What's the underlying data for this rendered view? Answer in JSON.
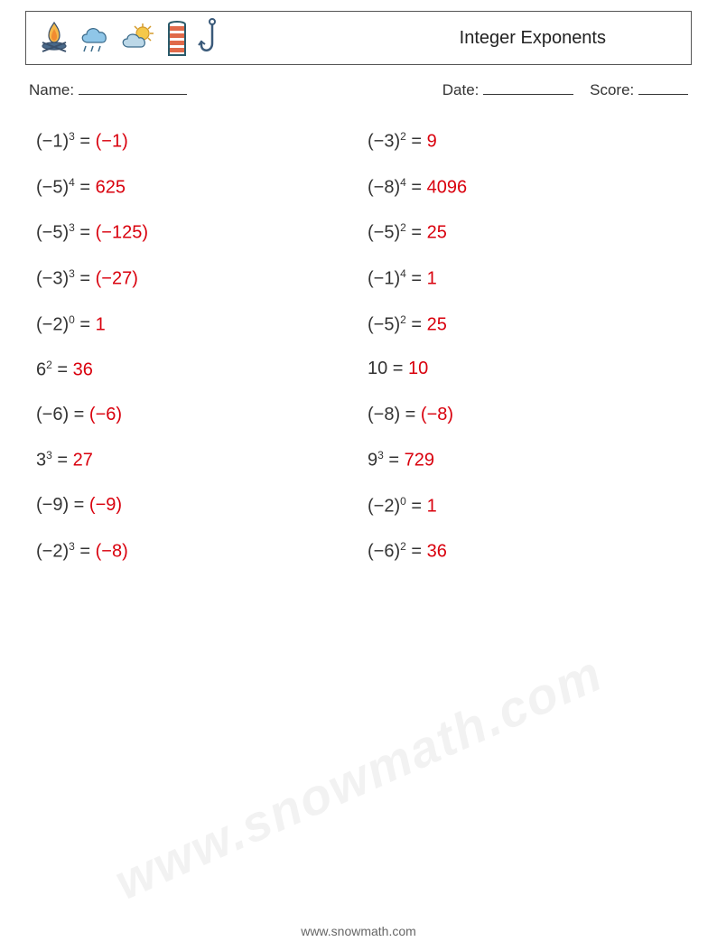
{
  "header": {
    "title": "Integer Exponents",
    "icons": [
      "campfire-icon",
      "cloud-icon",
      "sun-icon",
      "ladder-icon",
      "hook-icon"
    ]
  },
  "meta": {
    "name_label": "Name:",
    "date_label": "Date:",
    "score_label": "Score:"
  },
  "colors": {
    "answer": "#d9000d",
    "text": "#333333",
    "border": "#555555",
    "background": "#ffffff"
  },
  "problems": {
    "left": [
      {
        "base": "(−1)",
        "exp": "3",
        "answer": "(−1)"
      },
      {
        "base": "(−5)",
        "exp": "4",
        "answer": "625"
      },
      {
        "base": "(−5)",
        "exp": "3",
        "answer": "(−125)"
      },
      {
        "base": "(−3)",
        "exp": "3",
        "answer": "(−27)"
      },
      {
        "base": "(−2)",
        "exp": "0",
        "answer": "1"
      },
      {
        "base": "6",
        "exp": "2",
        "answer": "36"
      },
      {
        "base": "(−6)",
        "exp": "",
        "answer": "(−6)"
      },
      {
        "base": "3",
        "exp": "3",
        "answer": "27"
      },
      {
        "base": "(−9)",
        "exp": "",
        "answer": "(−9)"
      },
      {
        "base": "(−2)",
        "exp": "3",
        "answer": "(−8)"
      }
    ],
    "right": [
      {
        "base": "(−3)",
        "exp": "2",
        "answer": "9"
      },
      {
        "base": "(−8)",
        "exp": "4",
        "answer": "4096"
      },
      {
        "base": "(−5)",
        "exp": "2",
        "answer": "25"
      },
      {
        "base": "(−1)",
        "exp": "4",
        "answer": "1"
      },
      {
        "base": "(−5)",
        "exp": "2",
        "answer": "25"
      },
      {
        "base": "10",
        "exp": "",
        "answer": "10"
      },
      {
        "base": "(−8)",
        "exp": "",
        "answer": "(−8)"
      },
      {
        "base": "9",
        "exp": "3",
        "answer": "729"
      },
      {
        "base": "(−2)",
        "exp": "0",
        "answer": "1"
      },
      {
        "base": "(−6)",
        "exp": "2",
        "answer": "36"
      }
    ]
  },
  "footer": {
    "text": "www.snowmath.com"
  },
  "watermark": {
    "text": "www.snowmath.com"
  }
}
